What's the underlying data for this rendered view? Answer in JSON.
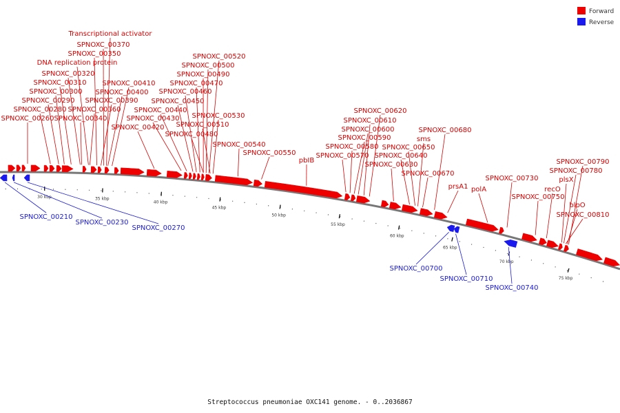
{
  "caption": "Streptococcus pneumoniae OXC141 genome. - 0..2036867",
  "legend": {
    "forward": {
      "label": "Forward",
      "color": "#ee0000"
    },
    "reverse": {
      "label": "Reverse",
      "color": "#1a1aee"
    }
  },
  "colors": {
    "forward_feature": "#ee0000",
    "reverse_feature": "#1a1aee",
    "forward_text": "#d40000",
    "reverse_text": "#1a1ad4",
    "backbone": "#777777"
  },
  "major_ticks": [
    "30 kbp",
    "35 kbp",
    "40 kbp",
    "45 kbp",
    "50 kbp",
    "55 kbp",
    "60 kbp",
    "65 kbp",
    "70 kbp",
    "75 kbp"
  ],
  "forward_labels": [
    "Transcriptional activator",
    "SPNOXC_00370",
    "SPNOXC_00350",
    "DNA replication protein",
    "SPNOXC_00320",
    "SPNOXC_00310",
    "SPNOXC_00300",
    "SPNOXC_00290",
    "SPNOXC_00280",
    "SPNOXC_00260",
    "SPNOXC_00410",
    "SPNOXC_00400",
    "SPNOXC_00390",
    "SPNOXC_00360",
    "SPNOXC_00340",
    "SPNOXC_00520",
    "SPNOXC_00500",
    "SPNOXC_00490",
    "SPNOXC_00470",
    "SPNOXC_00460",
    "SPNOXC_00450",
    "SPNOXC_00440",
    "SPNOXC_00430",
    "SPNOXC_00420",
    "SPNOXC_00530",
    "SPNOXC_00510",
    "SPNOXC_00480",
    "SPNOXC_00540",
    "SPNOXC_00550",
    "pbIB",
    "SPNOXC_00620",
    "SPNOXC_00610",
    "SPNOXC_00600",
    "SPNOXC_00590",
    "SPNOXC_00580",
    "SPNOXC_00570",
    "SPNOXC_00680",
    "sms",
    "SPNOXC_00650",
    "SPNOXC_00640",
    "SPNOXC_00630",
    "SPNOXC_00670",
    "prsA1",
    "polA",
    "SPNOXC_00730",
    "SPNOXC_00790",
    "SPNOXC_00780",
    "plsX",
    "recO",
    "SPNOXC_00750",
    "blpO",
    "SPNOXC_00810"
  ],
  "reverse_labels": [
    "SPNOXC_00210",
    "SPNOXC_00230",
    "SPNOXC_00270",
    "SPNOXC_00700",
    "SPNOXC_00710",
    "SPNOXC_00740"
  ]
}
